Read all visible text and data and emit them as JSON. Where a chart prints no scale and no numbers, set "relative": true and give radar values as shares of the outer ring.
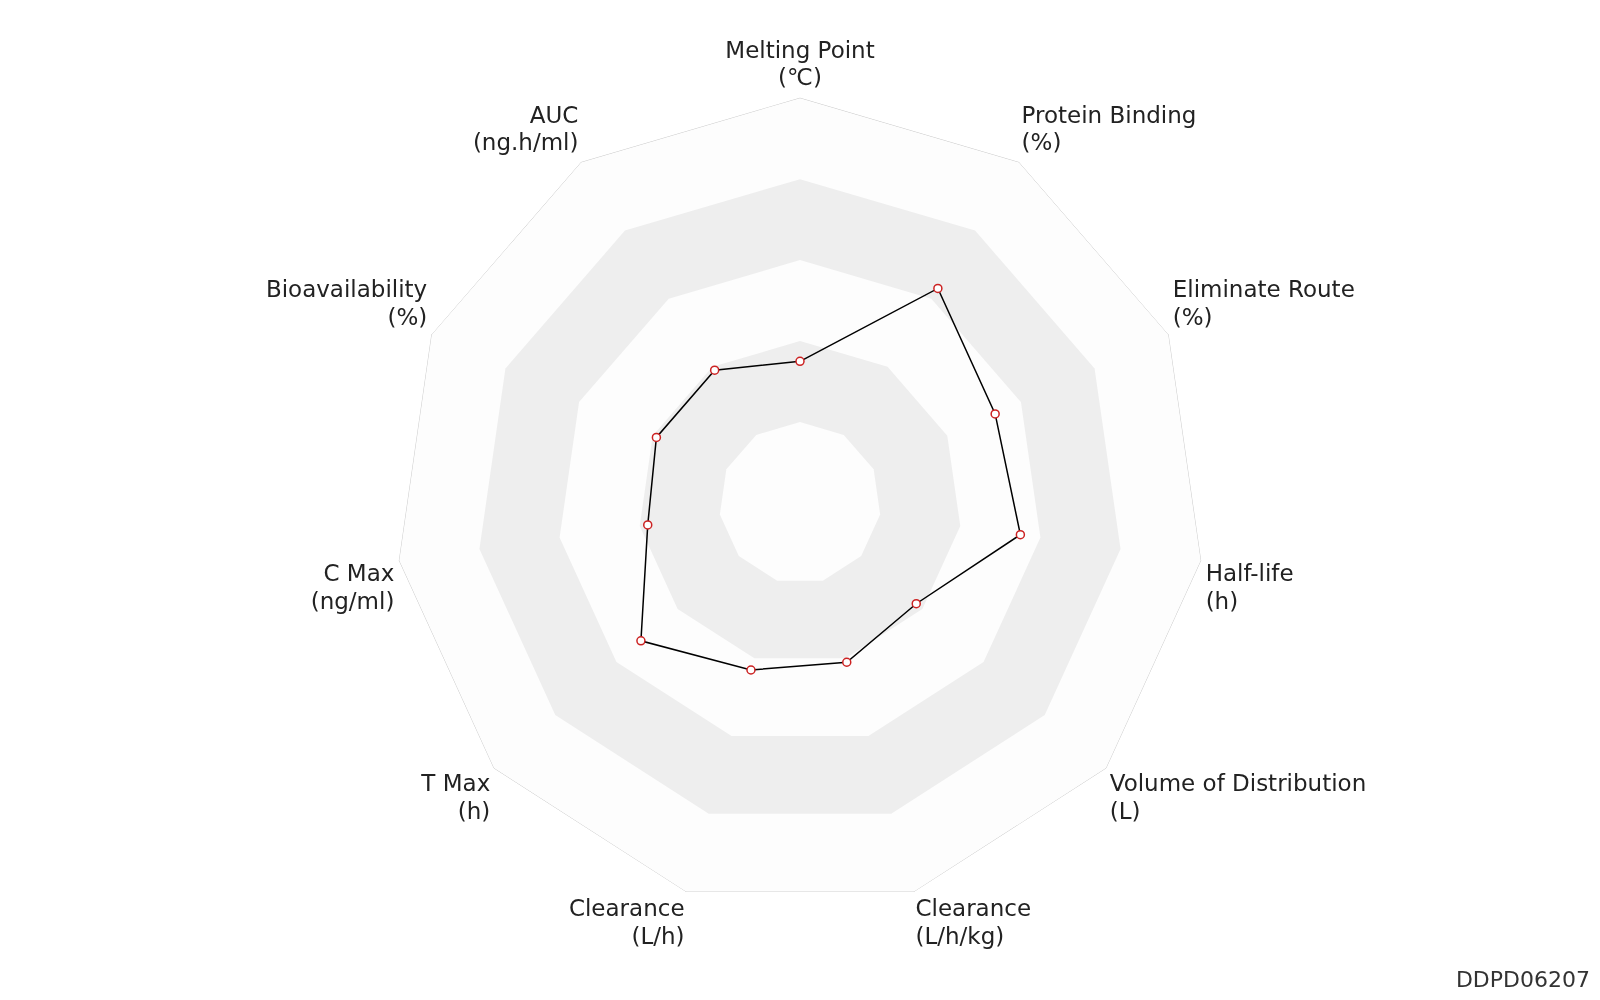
{
  "chart_data": {
    "type": "radar",
    "relative": true,
    "marker": "circle",
    "categories": [
      "Melting Point\n(℃)",
      "Protein Binding\n(%)",
      "Eliminate Route\n(%)",
      "Half-life\n(h)",
      "Volume of Distribution\n(L)",
      "Clearance\n(L/h/kg)",
      "Clearance\n(L/h)",
      "T Max\n(h)",
      "C Max\n(ng/ml)",
      "Bioavailability\n(%)",
      "AUC\n(ng.h/ml)"
    ],
    "series": [
      {
        "color": "#000000",
        "values": [
          0.35,
          0.63,
          0.53,
          0.55,
          0.38,
          0.41,
          0.43,
          0.52,
          0.38,
          0.39,
          0.39
        ]
      }
    ],
    "grid": true,
    "annotations": [
      "DDPD06207"
    ]
  }
}
